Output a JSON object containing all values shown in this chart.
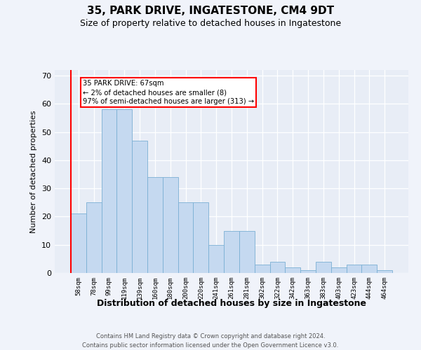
{
  "title1": "35, PARK DRIVE, INGATESTONE, CM4 9DT",
  "title2": "Size of property relative to detached houses in Ingatestone",
  "xlabel": "Distribution of detached houses by size in Ingatestone",
  "ylabel": "Number of detached properties",
  "categories": [
    "58sqm",
    "78sqm",
    "99sqm",
    "119sqm",
    "139sqm",
    "160sqm",
    "180sqm",
    "200sqm",
    "220sqm",
    "241sqm",
    "261sqm",
    "281sqm",
    "302sqm",
    "322sqm",
    "342sqm",
    "363sqm",
    "383sqm",
    "403sqm",
    "423sqm",
    "444sqm",
    "464sqm"
  ],
  "values": [
    21,
    25,
    58,
    58,
    47,
    34,
    34,
    25,
    25,
    10,
    15,
    15,
    3,
    4,
    2,
    1,
    4,
    2,
    3,
    3,
    1
  ],
  "bar_color": "#c5d9f0",
  "bar_edge_color": "#7aafd4",
  "annotation_text": "35 PARK DRIVE: 67sqm\n← 2% of detached houses are smaller (8)\n97% of semi-detached houses are larger (313) →",
  "ylim": [
    0,
    72
  ],
  "yticks": [
    0,
    10,
    20,
    30,
    40,
    50,
    60,
    70
  ],
  "footer1": "Contains HM Land Registry data © Crown copyright and database right 2024.",
  "footer2": "Contains public sector information licensed under the Open Government Licence v3.0.",
  "fig_bg_color": "#f0f3fa",
  "plot_bg_color": "#e8edf6",
  "title1_fontsize": 11,
  "title2_fontsize": 9,
  "xlabel_fontsize": 9,
  "ylabel_fontsize": 8
}
